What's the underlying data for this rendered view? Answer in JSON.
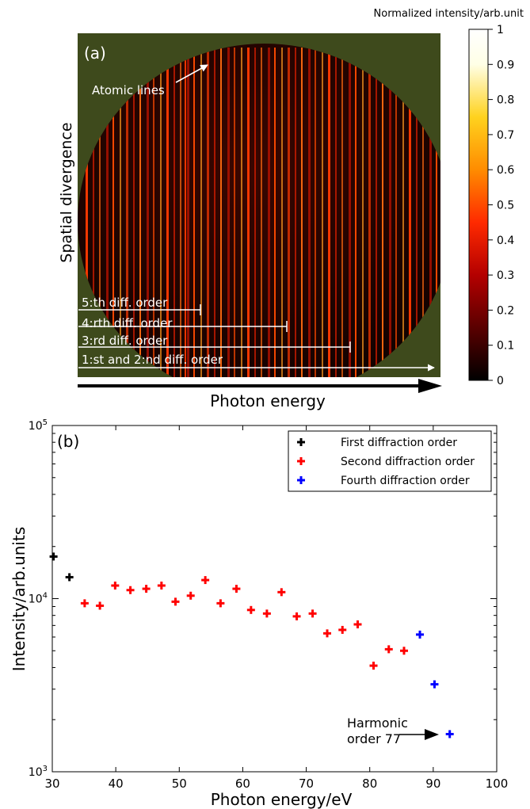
{
  "chart_data": [
    {
      "panel": "(a)",
      "type": "heatmap",
      "title": "",
      "xlabel": "Photon energy",
      "ylabel": "Spatial divergence",
      "colorbar": {
        "label": "Normalized intensity/arb.unit",
        "ticks": [
          "0",
          "0.1",
          "0.2",
          "0.3",
          "0.4",
          "0.5",
          "0.6",
          "0.7",
          "0.8",
          "0.9",
          "1"
        ],
        "range": [
          0,
          1
        ],
        "colormap": [
          "#000000",
          "#5a0000",
          "#b40000",
          "#ff2a00",
          "#ff8c00",
          "#ffd21e",
          "#ffffe6",
          "#ffffff"
        ]
      },
      "annotations": [
        {
          "text": "Atomic lines"
        },
        {
          "text": "5:th diff. order"
        },
        {
          "text": "4:rth diff. order"
        },
        {
          "text": "3:rd diff. order"
        },
        {
          "text": "1:st and 2:nd diff. order"
        }
      ]
    },
    {
      "panel": "(b)",
      "type": "scatter",
      "title": "",
      "xlabel": "Photon energy/eV",
      "ylabel": "Intensity/arb.units",
      "xlim": [
        30,
        100
      ],
      "ylim": [
        1000,
        100000
      ],
      "yscale": "log",
      "grid": false,
      "legend_position": "top-right",
      "xticks": [
        "30",
        "40",
        "50",
        "60",
        "70",
        "80",
        "90",
        "100"
      ],
      "yticks": [
        {
          "base": "10",
          "exp": "3",
          "value": 1000
        },
        {
          "base": "10",
          "exp": "4",
          "value": 10000
        },
        {
          "base": "10",
          "exp": "5",
          "value": 100000
        }
      ],
      "series": [
        {
          "name": "First diffraction order",
          "color": "#000000",
          "x": [
            30.2,
            32.7
          ],
          "y": [
            17500,
            13300
          ]
        },
        {
          "name": "Second diffraction order",
          "color": "#ff0000",
          "x": [
            35.1,
            37.5,
            39.9,
            42.3,
            44.8,
            47.2,
            49.4,
            51.8,
            54.1,
            56.5,
            59.0,
            61.3,
            63.8,
            66.1,
            68.5,
            71.0,
            73.3,
            75.7,
            78.1,
            80.6,
            83.0,
            85.4
          ],
          "y": [
            9400,
            9100,
            11900,
            11200,
            11400,
            11900,
            9600,
            10400,
            12800,
            9400,
            11400,
            8600,
            8200,
            10900,
            7900,
            8200,
            6300,
            6600,
            7100,
            4100,
            5100,
            5000
          ]
        },
        {
          "name": "Fourth diffraction order",
          "color": "#0000ff",
          "x": [
            87.9,
            90.2,
            92.6
          ],
          "y": [
            6200,
            3200,
            1650
          ]
        }
      ],
      "annotations": [
        {
          "line1": "Harmonic",
          "line2": "order 77"
        }
      ]
    }
  ]
}
